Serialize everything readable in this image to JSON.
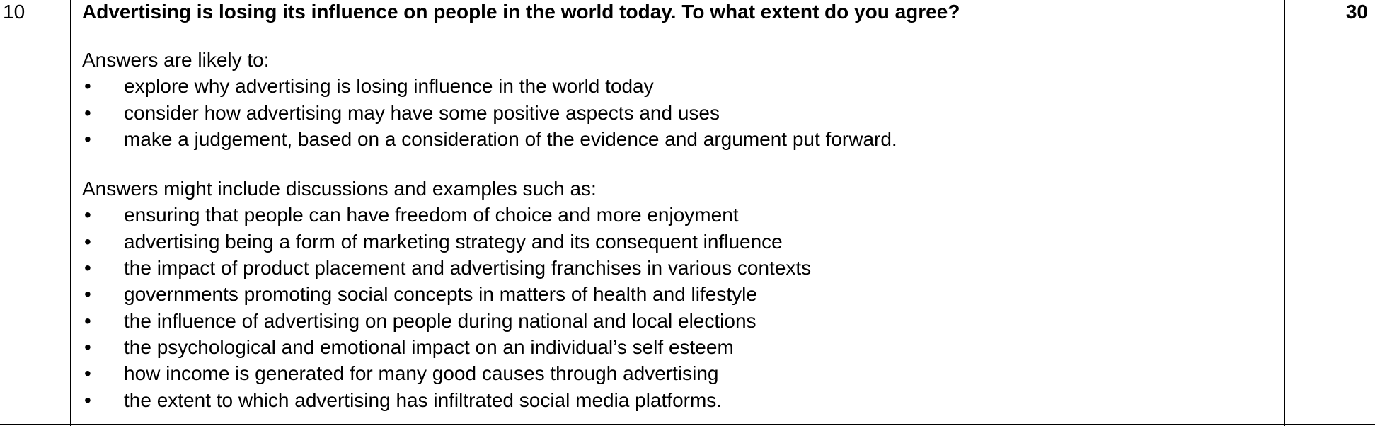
{
  "question_number": "10",
  "marks": "30",
  "question_text": "Advertising is losing its influence on people in the world today. To what extent do you agree?",
  "bullet_glyph": "•",
  "section_likely": {
    "intro": "Answers are likely to:",
    "items": [
      "explore why advertising is losing influence in the world today",
      "consider how advertising may have some positive aspects and uses",
      "make a judgement, based on a consideration of the evidence and argument put forward."
    ]
  },
  "section_include": {
    "intro": "Answers might include discussions and examples such as:",
    "items": [
      "ensuring that people can have freedom of choice and more enjoyment",
      "advertising being a form of marketing strategy and its consequent influence",
      "the impact of product placement and advertising franchises in various contexts",
      "governments promoting social concepts in matters of health and lifestyle",
      "the influence of advertising on people during national and local elections",
      "the psychological and emotional impact on an individual’s self esteem",
      "how income is generated for many good causes through advertising",
      "the extent to which advertising has infiltrated social media platforms."
    ]
  }
}
